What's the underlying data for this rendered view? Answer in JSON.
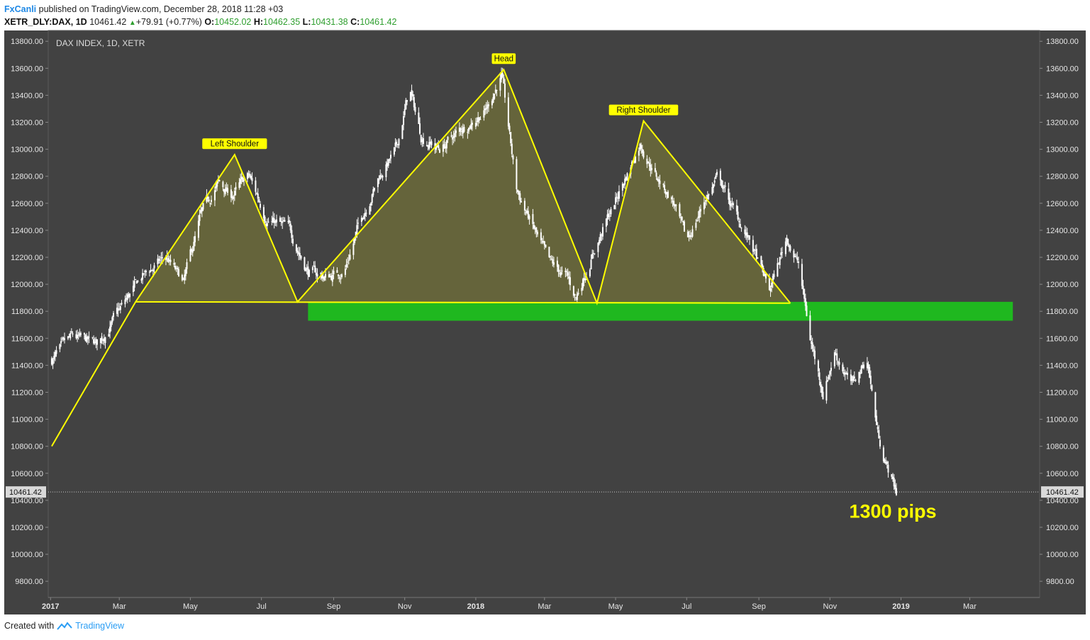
{
  "header": {
    "author": "FxCanli",
    "published_text": "published on TradingView.com, December 28, 2018 11:28 +03",
    "symbol_line": "XETR_DLY:DAX, 1D",
    "last": "10461.42",
    "change": "+79.91 (+0.77%)",
    "open_label": "O:",
    "open": "10452.02",
    "high_label": "H:",
    "high": "10462.35",
    "low_label": "L:",
    "low": "10431.38",
    "close_label": "C:",
    "close": "10461.42"
  },
  "footer": {
    "created_with": "Created with",
    "brand": "TradingView"
  },
  "colors": {
    "background": "#424242",
    "candles": "#ffffff",
    "pattern_line": "#ffff00",
    "pattern_fill": "#6b6a3a",
    "neckline_zone": "#1fb81f",
    "label_bg": "#ffff00",
    "annotation_text": "#ffff00"
  },
  "chart_data": {
    "type": "candlestick",
    "title": "DAX INDEX, 1D, XETR",
    "y_ticks": [
      13800,
      13600,
      13400,
      13200,
      13000,
      12800,
      12600,
      12400,
      12200,
      12000,
      11800,
      11600,
      11400,
      11200,
      11000,
      10800,
      10600,
      10400,
      10200,
      10000,
      9800
    ],
    "y_tick_labels": [
      "13800.00",
      "13600.00",
      "13400.00",
      "13200.00",
      "13000.00",
      "12800.00",
      "12600.00",
      "12400.00",
      "12200.00",
      "12000.00",
      "11800.00",
      "11600.00",
      "11400.00",
      "11200.00",
      "11000.00",
      "10800.00",
      "10600.00",
      "10400.00",
      "10200.00",
      "10000.00",
      "9800.00"
    ],
    "ylim": [
      9680,
      13880
    ],
    "x_ticks": [
      {
        "label": "2017",
        "date": "2017-01-01"
      },
      {
        "label": "Mar",
        "date": "2017-03-01"
      },
      {
        "label": "May",
        "date": "2017-05-01"
      },
      {
        "label": "Jul",
        "date": "2017-07-01"
      },
      {
        "label": "Sep",
        "date": "2017-09-01"
      },
      {
        "label": "Nov",
        "date": "2017-11-01"
      },
      {
        "label": "2018",
        "date": "2018-01-01"
      },
      {
        "label": "Mar",
        "date": "2018-03-01"
      },
      {
        "label": "May",
        "date": "2018-05-01"
      },
      {
        "label": "Jul",
        "date": "2018-07-01"
      },
      {
        "label": "Sep",
        "date": "2018-09-01"
      },
      {
        "label": "Nov",
        "date": "2018-11-01"
      },
      {
        "label": "2019",
        "date": "2019-01-01"
      },
      {
        "label": "Mar",
        "date": "2019-03-01"
      }
    ],
    "xlim": [
      "2016-12-30",
      "2019-04-30"
    ],
    "last_price": 10461.42,
    "last_price_label": "10461.42",
    "price_path": [
      [
        "2017-01-02",
        11440
      ],
      [
        "2017-01-20",
        11600
      ],
      [
        "2017-02-10",
        11550
      ],
      [
        "2017-03-01",
        11800
      ],
      [
        "2017-03-20",
        12050
      ],
      [
        "2017-04-10",
        12200
      ],
      [
        "2017-04-25",
        12000
      ],
      [
        "2017-05-10",
        12500
      ],
      [
        "2017-05-25",
        12750
      ],
      [
        "2017-06-05",
        12650
      ],
      [
        "2017-06-20",
        12800
      ],
      [
        "2017-07-05",
        12500
      ],
      [
        "2017-07-25",
        12400
      ],
      [
        "2017-08-10",
        12100
      ],
      [
        "2017-08-25",
        12050
      ],
      [
        "2017-09-10",
        12100
      ],
      [
        "2017-09-25",
        12500
      ],
      [
        "2017-10-10",
        12800
      ],
      [
        "2017-10-25",
        13000
      ],
      [
        "2017-11-05",
        13450
      ],
      [
        "2017-11-15",
        13100
      ],
      [
        "2017-12-01",
        13000
      ],
      [
        "2017-12-20",
        13150
      ],
      [
        "2018-01-10",
        13300
      ],
      [
        "2018-01-23",
        13550
      ],
      [
        "2018-02-05",
        12700
      ],
      [
        "2018-02-20",
        12400
      ],
      [
        "2018-03-05",
        12150
      ],
      [
        "2018-03-20",
        12050
      ],
      [
        "2018-03-28",
        11900
      ],
      [
        "2018-04-10",
        12200
      ],
      [
        "2018-04-25",
        12500
      ],
      [
        "2018-05-10",
        12800
      ],
      [
        "2018-05-22",
        13050
      ],
      [
        "2018-06-05",
        12800
      ],
      [
        "2018-06-20",
        12600
      ],
      [
        "2018-07-01",
        12300
      ],
      [
        "2018-07-15",
        12600
      ],
      [
        "2018-07-28",
        12800
      ],
      [
        "2018-08-10",
        12550
      ],
      [
        "2018-08-25",
        12300
      ],
      [
        "2018-09-10",
        11950
      ],
      [
        "2018-09-25",
        12350
      ],
      [
        "2018-10-05",
        12150
      ],
      [
        "2018-10-15",
        11600
      ],
      [
        "2018-10-26",
        11200
      ],
      [
        "2018-11-05",
        11500
      ],
      [
        "2018-11-20",
        11250
      ],
      [
        "2018-12-03",
        11450
      ],
      [
        "2018-12-12",
        10900
      ],
      [
        "2018-12-20",
        10650
      ],
      [
        "2018-12-28",
        10461
      ]
    ],
    "pattern": {
      "line_points": [
        [
          "2017-01-02",
          10800
        ],
        [
          "2017-03-15",
          11870
        ],
        [
          "2017-06-08",
          12960
        ],
        [
          "2017-08-01",
          11870
        ],
        [
          "2018-01-25",
          13590
        ],
        [
          "2018-04-15",
          11860
        ],
        [
          "2018-05-25",
          13210
        ],
        [
          "2018-09-28",
          11860
        ]
      ],
      "left_shoulder": [
        [
          "2017-03-15",
          11870
        ],
        [
          "2017-06-08",
          12960
        ],
        [
          "2017-08-01",
          11870
        ]
      ],
      "head": [
        [
          "2017-08-01",
          11870
        ],
        [
          "2018-01-25",
          13590
        ],
        [
          "2018-04-15",
          11860
        ]
      ],
      "right_shoulder": [
        [
          "2018-04-15",
          11860
        ],
        [
          "2018-05-25",
          13210
        ],
        [
          "2018-09-28",
          11860
        ]
      ],
      "neckline": [
        [
          "2017-03-15",
          11870
        ],
        [
          "2018-09-28",
          11860
        ]
      ],
      "neckline_zone": {
        "x": [
          "2017-08-10",
          "2019-04-07"
        ],
        "y": [
          11730,
          11870
        ]
      }
    },
    "labels": [
      {
        "text": "Left Shoulder",
        "date": "2017-06-08",
        "value": 12960
      },
      {
        "text": "Head",
        "date": "2018-01-25",
        "value": 13590
      },
      {
        "text": "Right Shoulder",
        "date": "2018-05-25",
        "value": 13210
      }
    ],
    "annotation": {
      "text": "1300 pips",
      "date": "2018-12-25",
      "value": 10270
    }
  }
}
